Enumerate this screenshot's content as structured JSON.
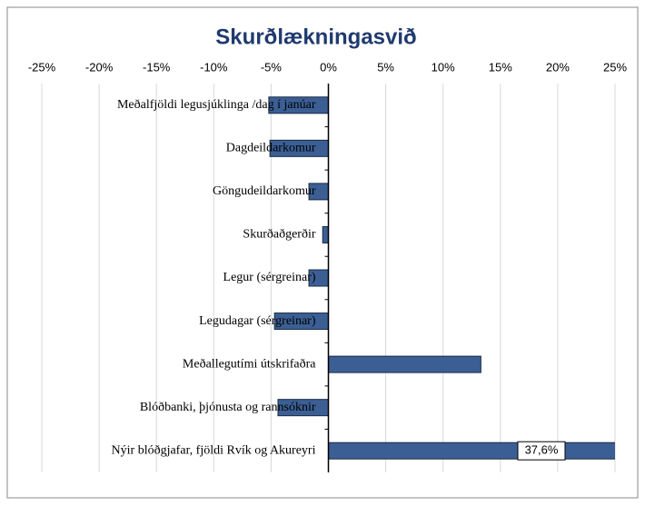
{
  "chart_data": {
    "type": "bar",
    "orientation": "horizontal",
    "title": "Skurðlækningasvið",
    "categories": [
      "Meðalfjöldi legusjúklinga /dag í janúar",
      "Dagdeildarkomur",
      "Göngudeildarkomur",
      "Skurðaðgerðir",
      "Legur (sérgreinar)",
      "Legudagar (sérgreinar)",
      "Meðallegutími útskrifaðra",
      "Blóðbanki, þjónusta og rannsóknir",
      "Nýir blóðgjafar, fjöldi Rvík og Akureyri"
    ],
    "values": [
      -5.2,
      -5.1,
      -1.7,
      -0.5,
      -1.7,
      -4.7,
      13.3,
      -4.4,
      37.6
    ],
    "value_labels": [
      null,
      null,
      null,
      null,
      null,
      null,
      null,
      null,
      "37,6%"
    ],
    "color": "#3b5f94",
    "xlim": [
      -25,
      25
    ],
    "xticks": [
      {
        "value": -25,
        "label": "-25%"
      },
      {
        "value": -20,
        "label": "-20%"
      },
      {
        "value": -15,
        "label": "-15%"
      },
      {
        "value": -10,
        "label": "-10%"
      },
      {
        "value": -5,
        "label": "-5%"
      },
      {
        "value": 0,
        "label": "0%"
      },
      {
        "value": 5,
        "label": "5%"
      },
      {
        "value": 10,
        "label": "10%"
      },
      {
        "value": 15,
        "label": "15%"
      },
      {
        "value": 20,
        "label": "20%"
      },
      {
        "value": 25,
        "label": "25%"
      }
    ],
    "grid": true
  }
}
